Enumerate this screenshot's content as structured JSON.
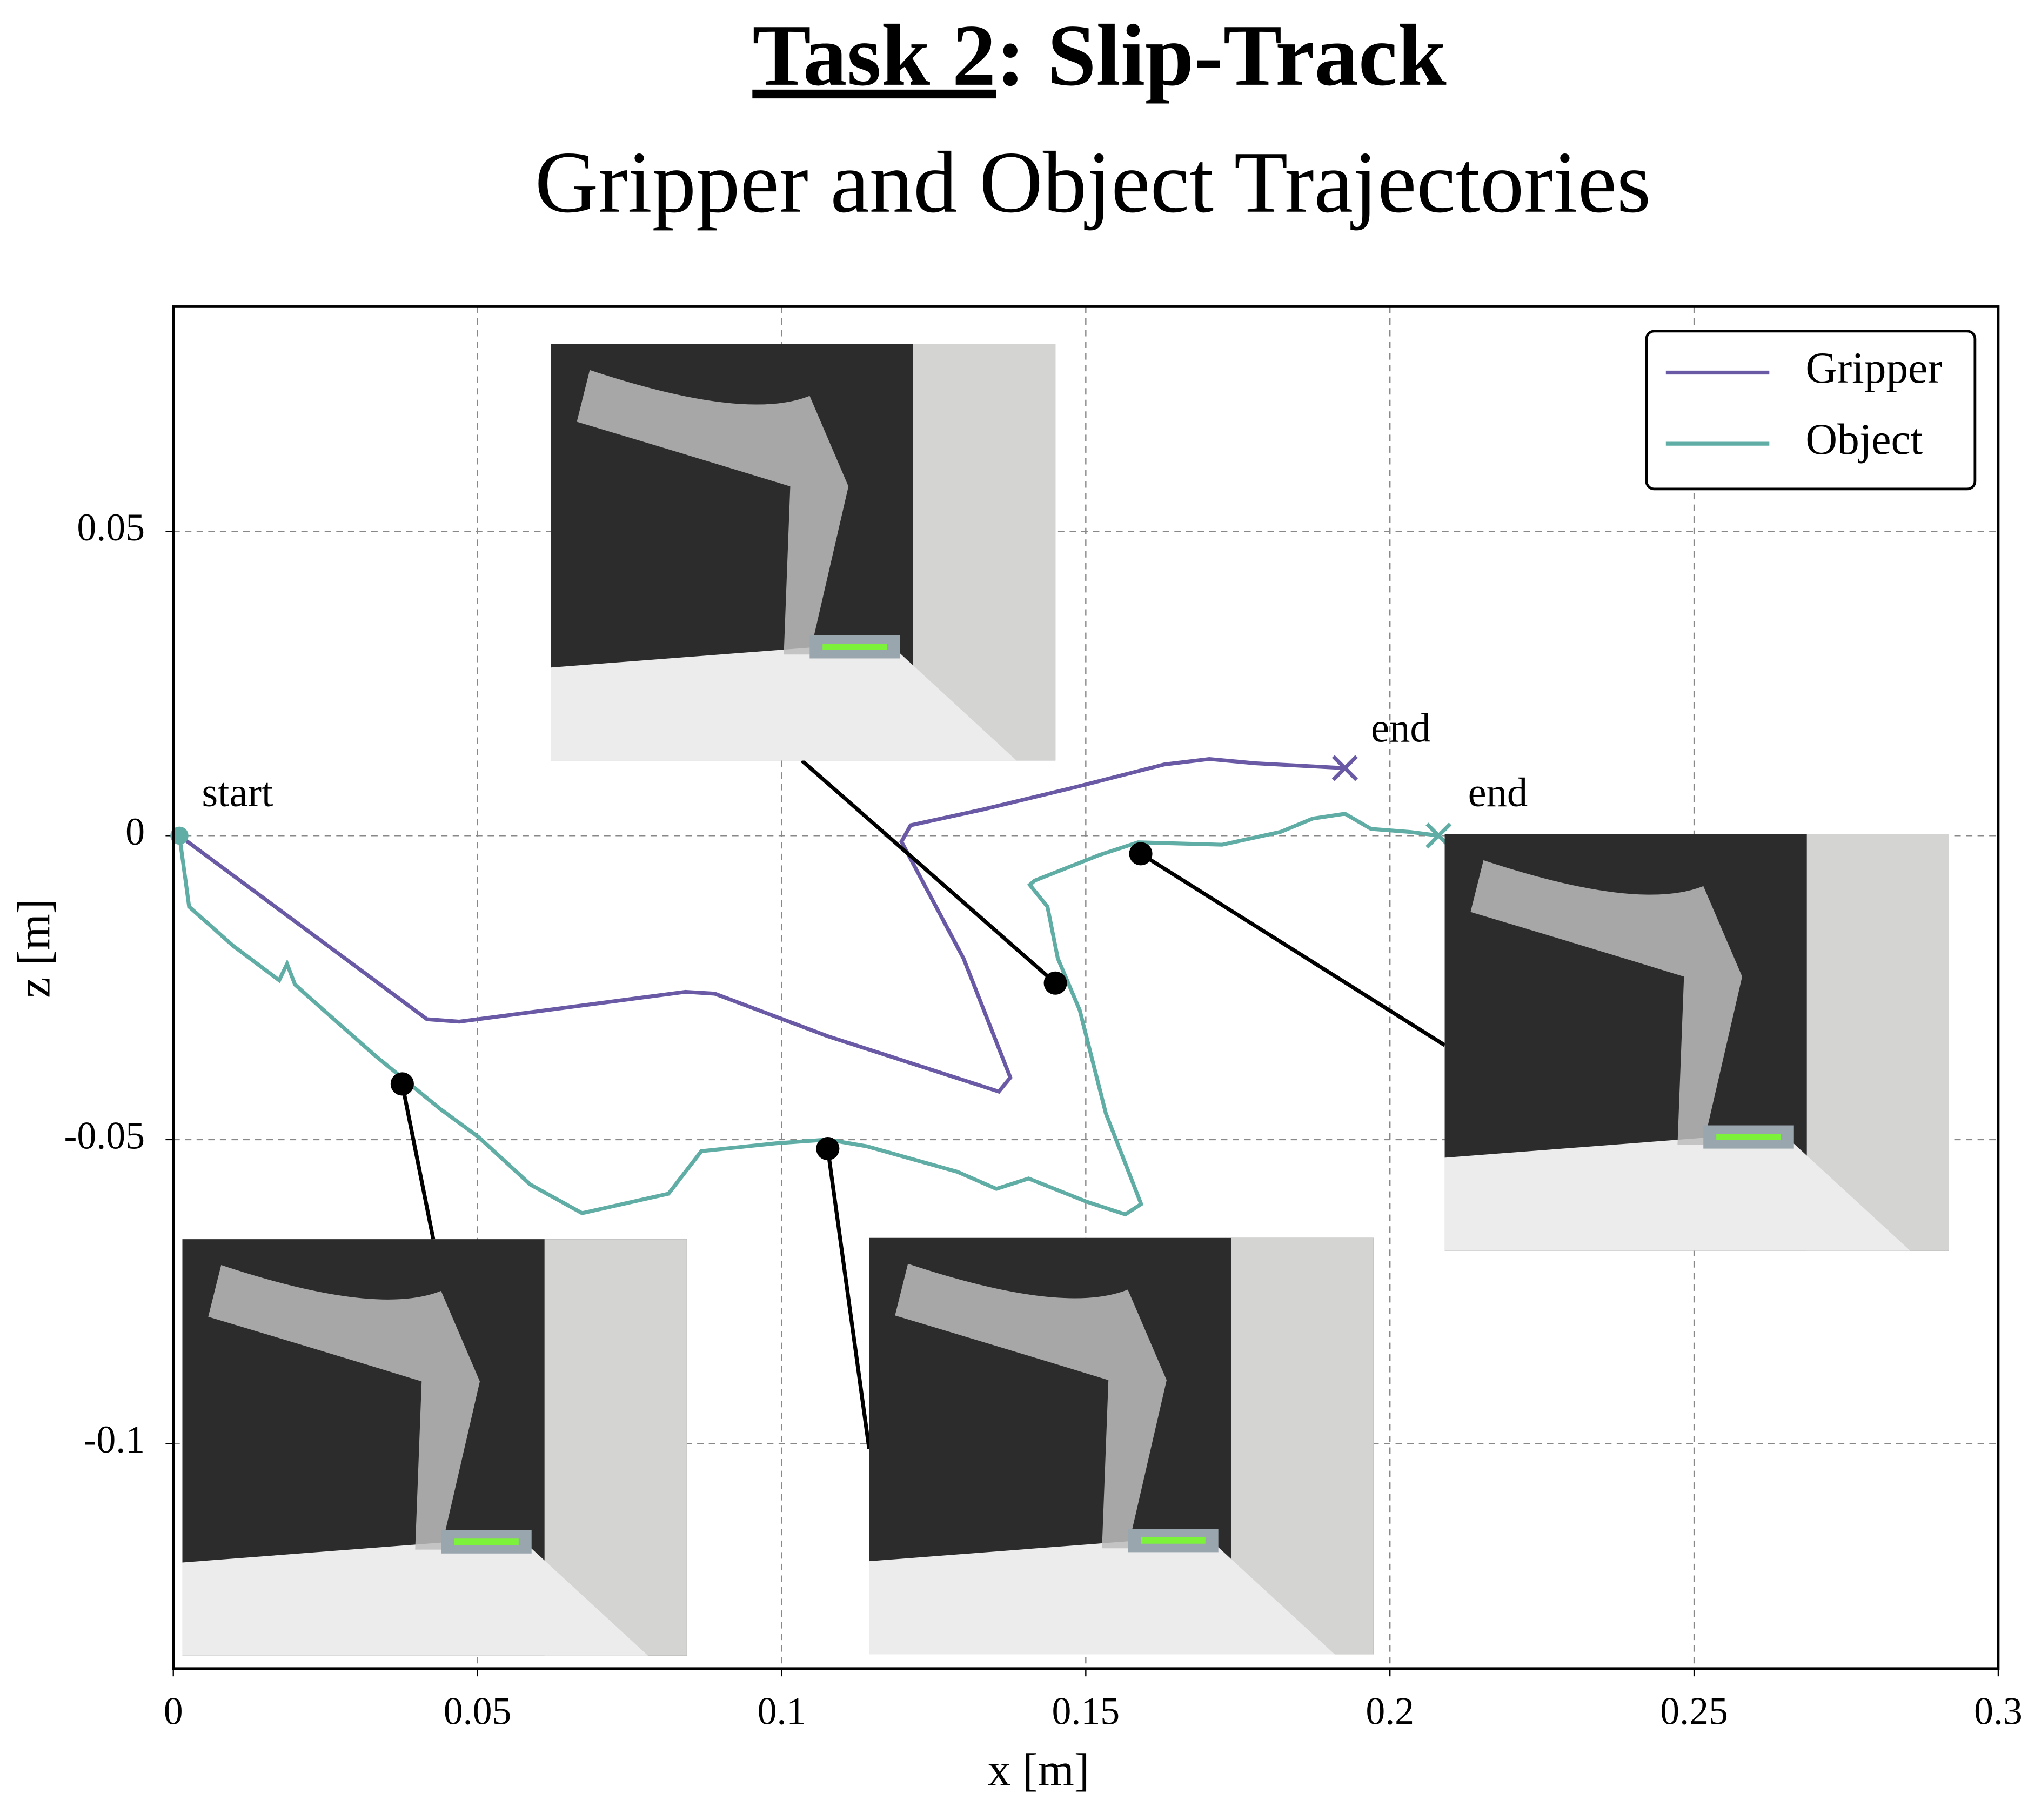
{
  "chart_data": {
    "type": "line",
    "title": [
      "Task 2",
      ": Slip-Track"
    ],
    "subtitle": "Gripper and Object Trajectories",
    "x_label": "x [m]",
    "y_label": "z [m]",
    "xlim": [
      0,
      0.3
    ],
    "ylim": [
      -0.137,
      0.087
    ],
    "xticks": [
      0,
      0.05,
      0.1,
      0.15,
      0.2,
      0.25,
      0.3
    ],
    "yticks": [
      0.05,
      0,
      -0.05,
      -0.1
    ],
    "grid": true,
    "legend": "upper right",
    "annotations": [
      "start",
      "end",
      "end"
    ],
    "series": [
      {
        "name": "Gripper",
        "color": "#6a5aa6",
        "x": [
          0.001,
          0.0417,
          0.047,
          0.0842,
          0.089,
          0.1076,
          0.1357,
          0.1376,
          0.1299,
          0.1197,
          0.1212,
          0.1331,
          0.148,
          0.1629,
          0.1703,
          0.1778,
          0.1926
        ],
        "values": [
          0,
          -0.0302,
          -0.0306,
          -0.0257,
          -0.026,
          -0.033,
          -0.0421,
          -0.0398,
          -0.0202,
          -0.001,
          0.0017,
          0.0043,
          0.0079,
          0.0117,
          0.0126,
          0.0119,
          0.0111
        ]
      },
      {
        "name": "Object",
        "color": "#5fada5",
        "x": [
          0.001,
          0.0026,
          0.0098,
          0.0174,
          0.0187,
          0.02,
          0.0247,
          0.0332,
          0.0438,
          0.0502,
          0.0587,
          0.0672,
          0.0814,
          0.0868,
          0.0991,
          0.1076,
          0.114,
          0.1289,
          0.1353,
          0.1406,
          0.1501,
          0.1565,
          0.1591,
          0.1533,
          0.149,
          0.1454,
          0.1437,
          0.1408,
          0.1416,
          0.1522,
          0.1586,
          0.1724,
          0.182,
          0.1873,
          0.1926,
          0.1969,
          0.2033,
          0.208
        ],
        "values": [
          0,
          -0.0117,
          -0.0181,
          -0.0238,
          -0.0211,
          -0.0245,
          -0.0287,
          -0.0362,
          -0.0449,
          -0.0496,
          -0.0574,
          -0.0621,
          -0.0589,
          -0.0519,
          -0.0506,
          -0.05,
          -0.0511,
          -0.0553,
          -0.0581,
          -0.0564,
          -0.0602,
          -0.0623,
          -0.0606,
          -0.0457,
          -0.0287,
          -0.0202,
          -0.0117,
          -0.0081,
          -0.0074,
          -0.0032,
          -0.0011,
          -0.0015,
          0.0006,
          0.0028,
          0.0036,
          0.0011,
          0.0006,
          0
        ]
      }
    ]
  }
}
